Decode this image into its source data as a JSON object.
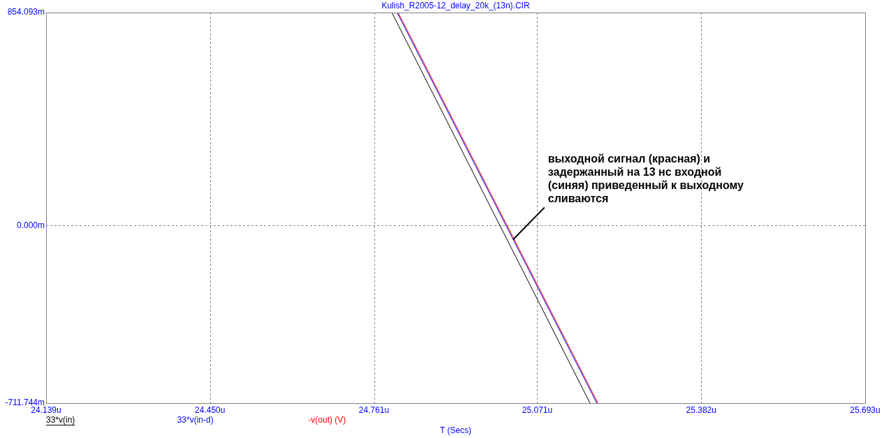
{
  "chart_data": {
    "type": "line",
    "title": "Kulish_R2005-12_delay_20k_(13n).CIR",
    "xlabel": "T (Secs)",
    "xlim": [
      24.139,
      25.693
    ],
    "xticks": [
      {
        "value": 24.139,
        "label": "24.139u"
      },
      {
        "value": 24.45,
        "label": "24.450u"
      },
      {
        "value": 24.761,
        "label": "24.761u"
      },
      {
        "value": 25.071,
        "label": "25.071u"
      },
      {
        "value": 25.382,
        "label": "25.382u"
      },
      {
        "value": 25.693,
        "label": "25.693u"
      }
    ],
    "ylim": [
      -711.744,
      854.093
    ],
    "yticks": [
      {
        "value": -711.744,
        "label": "-711.744m"
      },
      {
        "value": 0,
        "label": "0.000m"
      },
      {
        "value": 854.093,
        "label": "854.093m"
      }
    ],
    "grid": true,
    "legend": "bottom left",
    "marker": "none",
    "line_style": "solid",
    "series": [
      {
        "name": "33*v(in)",
        "color": "#000000",
        "x": [
          24.795,
          25.171
        ],
        "values": [
          854.093,
          -711.744
        ]
      },
      {
        "name": "33*v(in-d)",
        "color": "#0000ff",
        "x": [
          24.805,
          25.184
        ],
        "values": [
          854.093,
          -711.744
        ]
      },
      {
        "name": "-v(out) (V)",
        "color": "#ff0000",
        "x": [
          24.807,
          25.186
        ],
        "values": [
          854.093,
          -711.744
        ]
      }
    ],
    "annotations": [
      {
        "text": "выходной сигнал (красная) и задержанный на 13 нс входной (синяя) приведенный к выходному сливаются",
        "x": 25.025,
        "y": -56
      }
    ]
  }
}
